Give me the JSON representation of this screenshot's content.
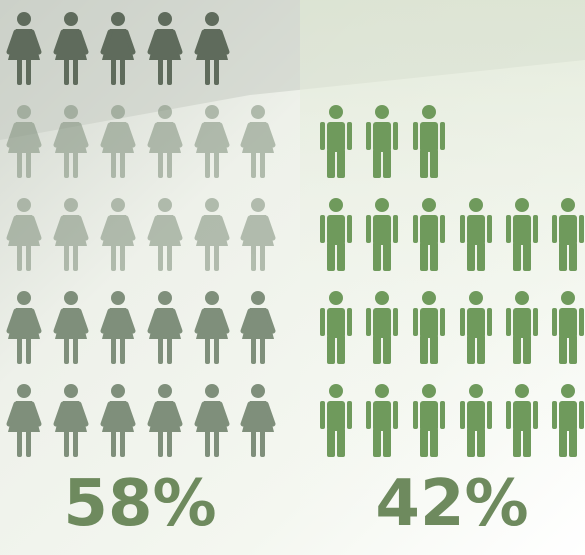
{
  "chart_data": {
    "type": "pictogram",
    "values": [
      58,
      42
    ],
    "value_labels": [
      "58%",
      "42%"
    ],
    "colors": [
      "#7f8f7b",
      "#6f9a5c"
    ]
  }
}
